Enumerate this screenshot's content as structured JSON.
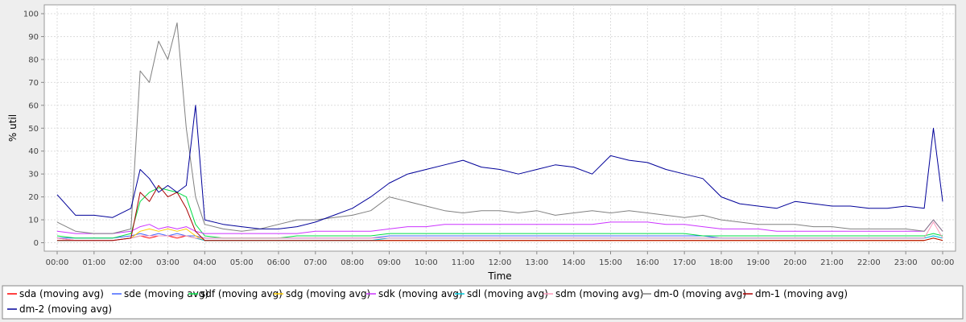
{
  "chart_data": {
    "type": "line",
    "title": "",
    "xlabel": "Time",
    "ylabel": "% util",
    "ylim": [
      0,
      100
    ],
    "xlim": [
      "00:00",
      "24:00"
    ],
    "grid": true,
    "legend_position": "bottom",
    "x_tick_labels": [
      "00:00",
      "01:00",
      "02:00",
      "03:00",
      "04:00",
      "05:00",
      "06:00",
      "07:00",
      "08:00",
      "09:00",
      "10:00",
      "11:00",
      "12:00",
      "13:00",
      "14:00",
      "15:00",
      "16:00",
      "17:00",
      "18:00",
      "19:00",
      "20:00",
      "21:00",
      "22:00",
      "23:00",
      "00:00"
    ],
    "y_tick_labels": [
      "0",
      "10",
      "20",
      "30",
      "40",
      "50",
      "60",
      "70",
      "80",
      "90",
      "100"
    ],
    "x": [
      "00:00",
      "00:30",
      "01:00",
      "01:30",
      "02:00",
      "02:15",
      "02:30",
      "02:45",
      "03:00",
      "03:15",
      "03:30",
      "03:45",
      "04:00",
      "04:30",
      "05:00",
      "05:30",
      "06:00",
      "06:30",
      "07:00",
      "07:30",
      "08:00",
      "08:30",
      "09:00",
      "09:30",
      "10:00",
      "10:30",
      "11:00",
      "11:30",
      "12:00",
      "12:30",
      "13:00",
      "13:30",
      "14:00",
      "14:30",
      "15:00",
      "15:30",
      "16:00",
      "16:30",
      "17:00",
      "17:30",
      "18:00",
      "18:30",
      "19:00",
      "19:30",
      "20:00",
      "20:30",
      "21:00",
      "21:30",
      "22:00",
      "22:30",
      "23:00",
      "23:30",
      "23:45",
      "24:00"
    ],
    "series": [
      {
        "name": "sda (moving avg)",
        "color": "#ff0000",
        "values": [
          2,
          1,
          1,
          1,
          2,
          3,
          2,
          3,
          3,
          2,
          3,
          2,
          1,
          1,
          1,
          1,
          1,
          1,
          1,
          1,
          1,
          1,
          1,
          1,
          1,
          1,
          1,
          1,
          1,
          1,
          1,
          1,
          1,
          1,
          1,
          1,
          1,
          1,
          1,
          1,
          1,
          1,
          1,
          1,
          1,
          1,
          1,
          1,
          1,
          1,
          1,
          1,
          2,
          1
        ]
      },
      {
        "name": "sde (moving avg)",
        "color": "#4466ff",
        "values": [
          2,
          2,
          2,
          2,
          3,
          4,
          3,
          4,
          3,
          4,
          3,
          3,
          2,
          2,
          2,
          2,
          2,
          2,
          2,
          2,
          2,
          2,
          3,
          3,
          3,
          3,
          3,
          3,
          3,
          3,
          3,
          3,
          3,
          3,
          3,
          3,
          3,
          3,
          3,
          3,
          2,
          2,
          2,
          2,
          2,
          2,
          2,
          2,
          2,
          2,
          2,
          2,
          3,
          2
        ]
      },
      {
        "name": "sdf (moving avg)",
        "color": "#00dd44",
        "values": [
          3,
          2,
          2,
          2,
          4,
          18,
          22,
          24,
          23,
          22,
          20,
          8,
          3,
          2,
          2,
          2,
          2,
          3,
          3,
          3,
          3,
          3,
          4,
          4,
          4,
          4,
          4,
          4,
          4,
          4,
          4,
          4,
          4,
          4,
          4,
          4,
          4,
          4,
          4,
          3,
          3,
          3,
          3,
          3,
          3,
          3,
          3,
          3,
          3,
          3,
          3,
          3,
          4,
          3
        ]
      },
      {
        "name": "sdg (moving avg)",
        "color": "#ffcc00",
        "values": [
          1,
          1,
          1,
          1,
          2,
          5,
          6,
          5,
          6,
          5,
          6,
          3,
          1,
          1,
          1,
          1,
          1,
          1,
          1,
          1,
          1,
          1,
          1,
          1,
          1,
          1,
          1,
          1,
          1,
          1,
          1,
          1,
          1,
          1,
          1,
          1,
          1,
          1,
          1,
          1,
          1,
          1,
          1,
          1,
          1,
          1,
          1,
          1,
          1,
          1,
          1,
          1,
          2,
          1
        ]
      },
      {
        "name": "sdk (moving avg)",
        "color": "#cc33ff",
        "values": [
          5,
          4,
          4,
          4,
          5,
          7,
          8,
          6,
          7,
          6,
          7,
          5,
          4,
          4,
          4,
          4,
          4,
          4,
          5,
          5,
          5,
          5,
          6,
          7,
          7,
          8,
          8,
          8,
          8,
          8,
          8,
          8,
          8,
          8,
          9,
          9,
          9,
          8,
          8,
          7,
          6,
          6,
          6,
          5,
          5,
          5,
          5,
          5,
          5,
          5,
          5,
          5,
          10,
          5
        ]
      },
      {
        "name": "sdl (moving avg)",
        "color": "#00ccdd",
        "values": [
          1,
          1,
          1,
          1,
          2,
          3,
          3,
          3,
          3,
          3,
          3,
          2,
          1,
          1,
          1,
          1,
          1,
          1,
          1,
          1,
          1,
          1,
          2,
          2,
          2,
          2,
          2,
          2,
          2,
          2,
          2,
          2,
          2,
          2,
          2,
          2,
          2,
          2,
          2,
          2,
          2,
          2,
          2,
          2,
          2,
          2,
          2,
          2,
          2,
          2,
          2,
          2,
          3,
          2
        ]
      },
      {
        "name": "sdm (moving avg)",
        "color": "#ff99bb",
        "values": [
          2,
          1,
          1,
          1,
          2,
          3,
          3,
          3,
          3,
          3,
          3,
          2,
          2,
          2,
          2,
          2,
          2,
          2,
          2,
          2,
          2,
          2,
          2,
          2,
          2,
          2,
          2,
          2,
          2,
          2,
          2,
          2,
          2,
          2,
          2,
          2,
          2,
          2,
          2,
          2,
          2,
          2,
          2,
          2,
          2,
          2,
          2,
          2,
          2,
          2,
          2,
          2,
          9,
          2
        ]
      },
      {
        "name": "dm-0 (moving avg)",
        "color": "#808080",
        "values": [
          9,
          5,
          4,
          4,
          6,
          75,
          70,
          88,
          80,
          96,
          50,
          20,
          8,
          6,
          5,
          6,
          8,
          10,
          10,
          11,
          12,
          14,
          20,
          18,
          16,
          14,
          13,
          14,
          14,
          13,
          14,
          12,
          13,
          14,
          13,
          14,
          13,
          12,
          11,
          12,
          10,
          9,
          8,
          8,
          8,
          7,
          7,
          6,
          6,
          6,
          6,
          5,
          10,
          5
        ]
      },
      {
        "name": "dm-1 (moving avg)",
        "color": "#aa0000",
        "values": [
          1,
          1,
          1,
          1,
          2,
          22,
          18,
          25,
          20,
          22,
          15,
          5,
          1,
          1,
          1,
          1,
          1,
          1,
          1,
          1,
          1,
          1,
          1,
          1,
          1,
          1,
          1,
          1,
          1,
          1,
          1,
          1,
          1,
          1,
          1,
          1,
          1,
          1,
          1,
          1,
          1,
          1,
          1,
          1,
          1,
          1,
          1,
          1,
          1,
          1,
          1,
          1,
          2,
          1
        ]
      },
      {
        "name": "dm-2 (moving avg)",
        "color": "#000099",
        "values": [
          21,
          12,
          12,
          11,
          15,
          32,
          28,
          22,
          25,
          22,
          25,
          60,
          10,
          8,
          7,
          6,
          6,
          7,
          9,
          12,
          15,
          20,
          26,
          30,
          32,
          34,
          36,
          33,
          32,
          30,
          32,
          34,
          33,
          30,
          38,
          36,
          35,
          32,
          30,
          28,
          20,
          17,
          16,
          15,
          18,
          17,
          16,
          16,
          15,
          15,
          16,
          15,
          50,
          18
        ]
      }
    ]
  }
}
